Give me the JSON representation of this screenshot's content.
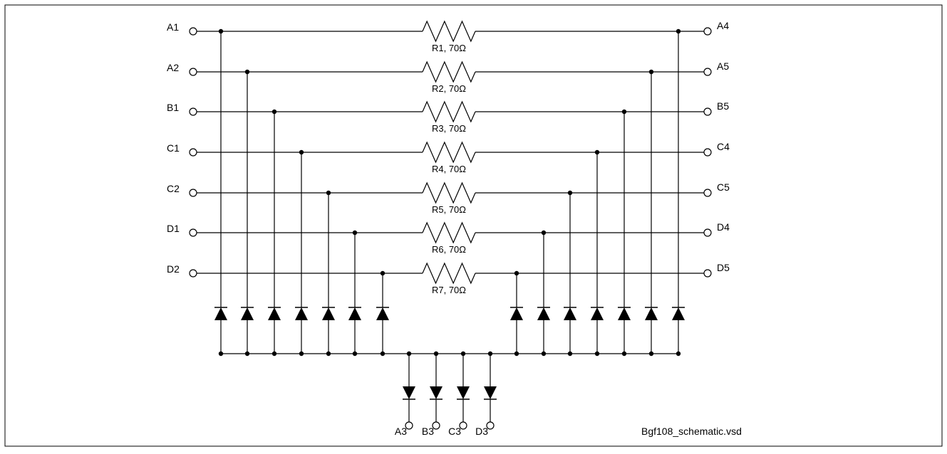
{
  "left_pins": [
    "A1",
    "A2",
    "B1",
    "C1",
    "C2",
    "D1",
    "D2"
  ],
  "right_pins": [
    "A4",
    "A5",
    "B5",
    "C4",
    "C5",
    "D4",
    "D5"
  ],
  "resistors": [
    "R1, 70Ω",
    "R2, 70Ω",
    "R3, 70Ω",
    "R4, 70Ω",
    "R5, 70Ω",
    "R6, 70Ω",
    "R7, 70Ω"
  ],
  "bottom_pins": [
    "A3",
    "B3",
    "C3",
    "D3"
  ],
  "file_name": "Bgf108_schematic.vsd"
}
